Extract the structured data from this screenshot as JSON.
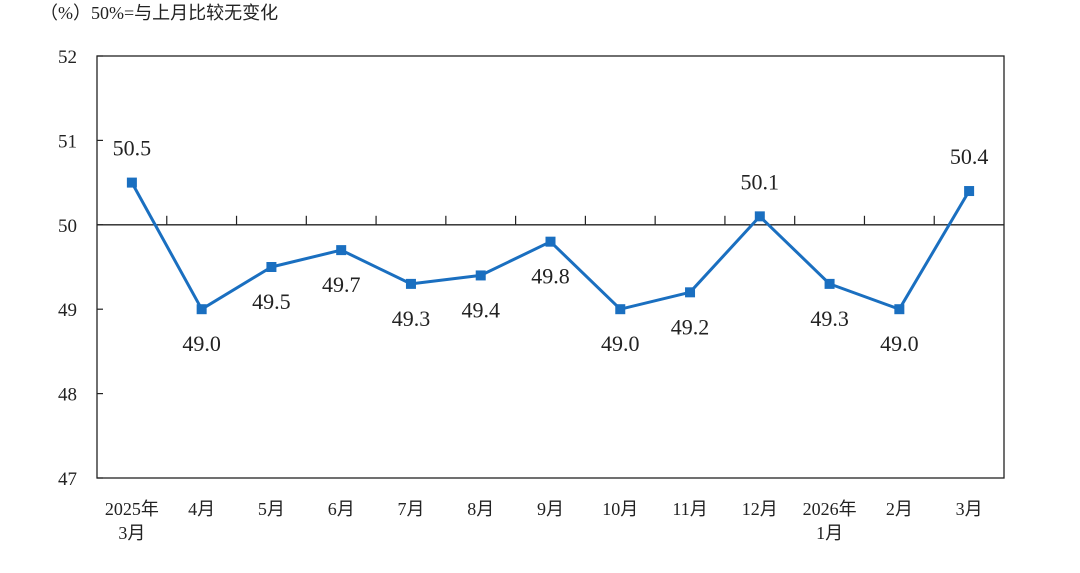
{
  "chart_data": {
    "type": "line",
    "subtitle": "（%）50%=与上月比较无变化",
    "categories": [
      [
        "2025年",
        "3月"
      ],
      [
        "4月"
      ],
      [
        "5月"
      ],
      [
        "6月"
      ],
      [
        "7月"
      ],
      [
        "8月"
      ],
      [
        "9月"
      ],
      [
        "10月"
      ],
      [
        "11月"
      ],
      [
        "12月"
      ],
      [
        "2026年",
        "1月"
      ],
      [
        "2月"
      ],
      [
        "3月"
      ]
    ],
    "series": [
      {
        "values": [
          50.5,
          49.0,
          49.5,
          49.7,
          49.3,
          49.4,
          49.8,
          49.0,
          49.2,
          50.1,
          49.3,
          49.0,
          50.4
        ],
        "labels": [
          "50.5",
          "49.0",
          "49.5",
          "49.7",
          "49.3",
          "49.4",
          "49.8",
          "49.0",
          "49.2",
          "50.1",
          "49.3",
          "49.0",
          "50.4"
        ]
      }
    ],
    "label_positions": [
      "above",
      "below",
      "below",
      "below",
      "below",
      "below",
      "below",
      "below",
      "below",
      "above",
      "below",
      "below",
      "above"
    ],
    "ylim": [
      47,
      52
    ],
    "yticks": [
      "47",
      "48",
      "49",
      "50",
      "51",
      "52"
    ],
    "reference_line": 50,
    "grid": false,
    "colors": {
      "line": "#1a6fc0",
      "marker": "#1a6fc0",
      "axis": "#222222",
      "reference": "#222222"
    }
  }
}
